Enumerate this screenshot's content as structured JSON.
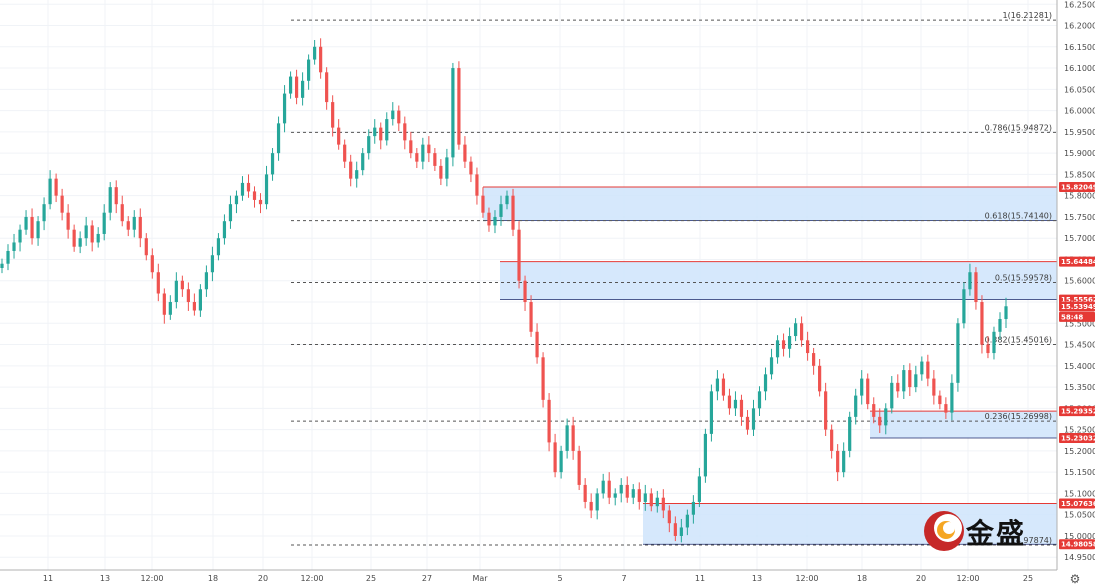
{
  "chart_data": {
    "type": "candlestick",
    "title": "",
    "ylim": [
      14.92,
      16.26
    ],
    "y_ticks": [
      "16.25000",
      "16.20000",
      "16.15000",
      "16.10000",
      "16.05000",
      "16.00000",
      "15.95000",
      "15.90000",
      "15.85000",
      "15.80000",
      "15.75000",
      "15.70000",
      "15.65000",
      "15.60000",
      "15.55000",
      "15.50000",
      "15.45000",
      "15.40000",
      "15.35000",
      "15.30000",
      "15.25000",
      "15.20000",
      "15.15000",
      "15.10000",
      "15.05000",
      "15.00000",
      "14.95000"
    ],
    "x_ticks": [
      "11",
      "13",
      "12:00",
      "18",
      "20",
      "12:00",
      "25",
      "27",
      "Mar",
      "5",
      "7",
      "11",
      "13",
      "12:00",
      "18",
      "20",
      "12:00",
      "25"
    ],
    "fib_levels": [
      {
        "label": "1(16.21281)",
        "value": 16.21281
      },
      {
        "label": "0.786(15.94872)",
        "value": 15.94872
      },
      {
        "label": "0.618(15.74140)",
        "value": 15.7414
      },
      {
        "label": "0.5(15.59578)",
        "value": 15.59578
      },
      {
        "label": "0.382(15.45016)",
        "value": 15.45016
      },
      {
        "label": "0.236(15.26998)",
        "value": 15.26998
      },
      {
        "label": "0(14.97874)",
        "value": 14.97874
      }
    ],
    "price_tags": [
      {
        "label": "15.82049",
        "value": 15.82049,
        "color": "#e53935"
      },
      {
        "label": "15.64484",
        "value": 15.64484,
        "color": "#e53935"
      },
      {
        "label": "15.55562",
        "value": 15.55562,
        "color": "#e53935"
      },
      {
        "label": "15.53949",
        "value": 15.53949,
        "color": "#e53935"
      },
      {
        "label": "58:48",
        "value": 15.515,
        "color": "#e53935"
      },
      {
        "label": "15.29352",
        "value": 15.29352,
        "color": "#e53935"
      },
      {
        "label": "15.23032",
        "value": 15.23032,
        "color": "#e53935"
      },
      {
        "label": "15.07636",
        "value": 15.07636,
        "color": "#e53935"
      },
      {
        "label": "14.98058",
        "value": 14.98058,
        "color": "#e53935"
      }
    ],
    "zones": [
      {
        "top": 15.82049,
        "bottom": 15.7414
      },
      {
        "top": 15.64484,
        "bottom": 15.55562
      },
      {
        "top": 15.29352,
        "bottom": 15.23032
      },
      {
        "top": 15.07636,
        "bottom": 14.98058
      }
    ],
    "close_path": [
      15.64,
      15.67,
      15.69,
      15.72,
      15.75,
      15.7,
      15.74,
      15.78,
      15.84,
      15.8,
      15.76,
      15.72,
      15.68,
      15.7,
      15.73,
      15.69,
      15.71,
      15.76,
      15.82,
      15.78,
      15.74,
      15.72,
      15.75,
      15.7,
      15.66,
      15.62,
      15.57,
      15.52,
      15.55,
      15.6,
      15.58,
      15.55,
      15.53,
      15.58,
      15.62,
      15.66,
      15.7,
      15.74,
      15.78,
      15.8,
      15.83,
      15.81,
      15.79,
      15.78,
      15.85,
      15.9,
      15.97,
      16.04,
      16.08,
      16.03,
      16.07,
      16.12,
      16.15,
      16.09,
      16.02,
      15.96,
      15.92,
      15.88,
      15.84,
      15.86,
      15.9,
      15.94,
      15.96,
      15.93,
      15.98,
      16.0,
      15.97,
      15.93,
      15.9,
      15.88,
      15.92,
      15.9,
      15.87,
      15.84,
      15.89,
      16.1,
      15.92,
      15.88,
      15.85,
      15.8,
      15.76,
      15.73,
      15.75,
      15.78,
      15.8,
      15.72,
      15.6,
      15.55,
      15.48,
      15.42,
      15.32,
      15.22,
      15.15,
      15.2,
      15.26,
      15.2,
      15.12,
      15.08,
      15.06,
      15.1,
      15.13,
      15.09,
      15.1,
      15.12,
      15.09,
      15.11,
      15.08,
      15.1,
      15.07,
      15.09,
      15.06,
      15.03,
      15.0,
      15.02,
      15.05,
      15.08,
      15.14,
      15.24,
      15.34,
      15.37,
      15.33,
      15.3,
      15.32,
      15.28,
      15.25,
      15.3,
      15.34,
      15.38,
      15.42,
      15.46,
      15.44,
      15.47,
      15.5,
      15.46,
      15.43,
      15.4,
      15.34,
      15.25,
      15.2,
      15.15,
      15.2,
      15.28,
      15.33,
      15.37,
      15.31,
      15.28,
      15.26,
      15.3,
      15.36,
      15.34,
      15.39,
      15.35,
      15.38,
      15.41,
      15.37,
      15.33,
      15.31,
      15.29,
      15.36,
      15.5,
      15.58,
      15.62,
      15.55,
      15.45,
      15.43,
      15.48,
      15.51,
      15.54
    ]
  },
  "labels": {
    "logo_text": "金盛",
    "settings_icon": "gear-icon"
  },
  "colors": {
    "up": "#26a69a",
    "down": "#ef5350",
    "zone_fill": "#cfe4fb",
    "zone_line": "#2962ff",
    "tag_red": "#e53935",
    "fib_line": "#555555",
    "logo_accent": "#c62828",
    "logo_gold": "#f5a623"
  }
}
